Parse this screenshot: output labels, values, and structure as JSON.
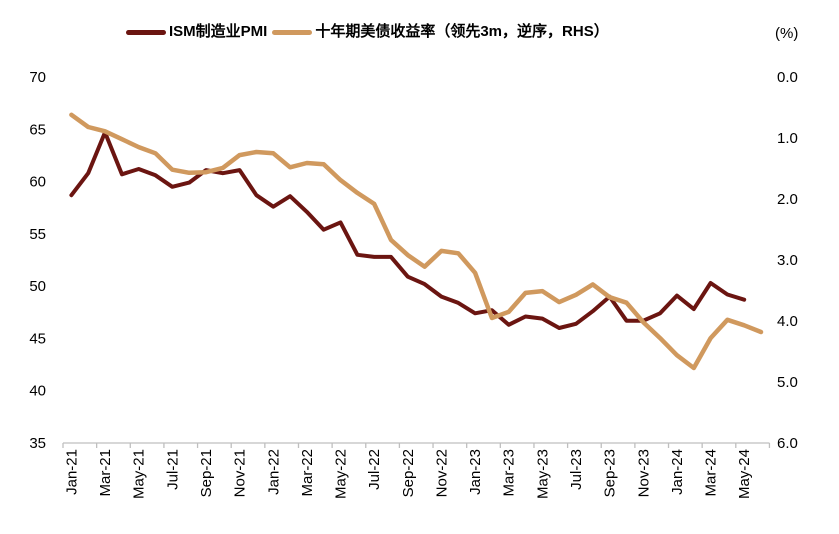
{
  "right_axis_unit": "(%)",
  "chart_data": {
    "type": "line",
    "title": "",
    "grid": false,
    "legend_position": "top-center",
    "months": [
      "Jan-21",
      "Feb-21",
      "Mar-21",
      "Apr-21",
      "May-21",
      "Jun-21",
      "Jul-21",
      "Aug-21",
      "Sep-21",
      "Oct-21",
      "Nov-21",
      "Dec-21",
      "Jan-22",
      "Feb-22",
      "Mar-22",
      "Apr-22",
      "May-22",
      "Jun-22",
      "Jul-22",
      "Aug-22",
      "Sep-22",
      "Oct-22",
      "Nov-22",
      "Dec-22",
      "Jan-23",
      "Feb-23",
      "Mar-23",
      "Apr-23",
      "May-23",
      "Jun-23",
      "Jul-23",
      "Aug-23",
      "Sep-23",
      "Oct-23",
      "Nov-23",
      "Dec-23",
      "Jan-24",
      "Feb-24",
      "Mar-24",
      "Apr-24",
      "May-24",
      "Jun-24"
    ],
    "x_tick_labels": [
      "Jan-21",
      "Mar-21",
      "May-21",
      "Jul-21",
      "Sep-21",
      "Nov-21",
      "Jan-22",
      "Mar-22",
      "May-22",
      "Jul-22",
      "Sep-22",
      "Nov-22",
      "Jan-23",
      "Mar-23",
      "May-23",
      "Jul-23",
      "Sep-23",
      "Nov-23",
      "Jan-24",
      "Mar-24",
      "May-24"
    ],
    "left_axis": {
      "min": 35,
      "max": 70,
      "ticks": [
        70,
        65,
        60,
        55,
        50,
        45,
        40,
        35
      ]
    },
    "right_axis": {
      "min": 0,
      "max": 6,
      "inverted": true,
      "unit": "(%)",
      "ticks": [
        "0.0",
        "1.0",
        "2.0",
        "3.0",
        "4.0",
        "5.0",
        "6.0"
      ]
    },
    "axis_color": "#BFBFBF",
    "series": [
      {
        "name": "ISM制造业PMI",
        "axis": "left",
        "color": "#6B1511",
        "line_width": 4,
        "values": [
          58.7,
          60.8,
          64.7,
          60.7,
          61.2,
          60.6,
          59.5,
          59.9,
          61.1,
          60.8,
          61.1,
          58.7,
          57.6,
          58.6,
          57.1,
          55.4,
          56.1,
          53.0,
          52.8,
          52.8,
          50.9,
          50.2,
          49.0,
          48.4,
          47.4,
          47.7,
          46.3,
          47.1,
          46.9,
          46.0,
          46.4,
          47.6,
          49.0,
          46.7,
          46.7,
          47.4,
          49.1,
          47.8,
          50.3,
          49.2,
          48.7,
          null
        ]
      },
      {
        "name": "十年期美债收益率（领先3m，逆序，RHS）",
        "axis": "right",
        "color": "#D0995E",
        "line_width": 4.5,
        "values": [
          0.62,
          0.82,
          0.89,
          1.02,
          1.15,
          1.25,
          1.52,
          1.57,
          1.56,
          1.49,
          1.28,
          1.23,
          1.25,
          1.48,
          1.41,
          1.43,
          1.69,
          1.9,
          2.08,
          2.67,
          2.92,
          3.11,
          2.85,
          2.89,
          3.21,
          3.95,
          3.85,
          3.54,
          3.51,
          3.69,
          3.57,
          3.4,
          3.61,
          3.7,
          4.02,
          4.28,
          4.56,
          4.77,
          4.28,
          3.98,
          4.07,
          4.18
        ]
      }
    ]
  }
}
